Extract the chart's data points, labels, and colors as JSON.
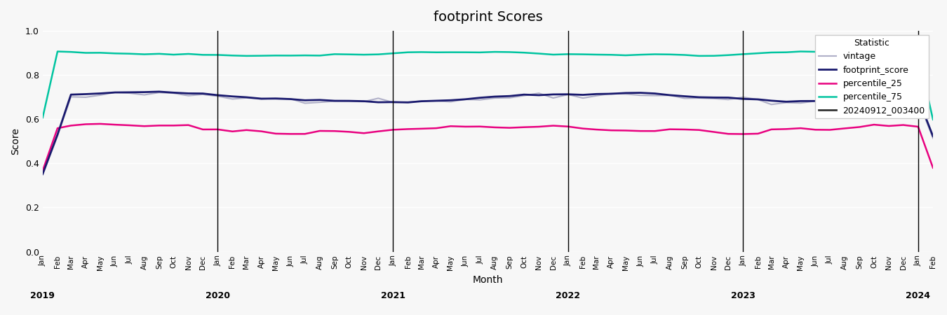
{
  "title": "footprint Scores",
  "xlabel": "Month",
  "ylabel": "Score",
  "ylim": [
    0.0,
    1.0
  ],
  "yticks": [
    0.0,
    0.2,
    0.4,
    0.6,
    0.8,
    1.0
  ],
  "legend_title": "Statistic",
  "lines": {
    "footprint_score": {
      "color": "#1a1a6e",
      "linewidth": 2.0,
      "label": "footprint_score"
    },
    "percentile_25": {
      "color": "#e8007f",
      "linewidth": 1.8,
      "label": "percentile_25"
    },
    "percentile_75": {
      "color": "#00c4a0",
      "linewidth": 1.8,
      "label": "percentile_75"
    },
    "vintage": {
      "color": "#b0b0c8",
      "linewidth": 1.5,
      "label": "vintage"
    },
    "vintage_dark": {
      "color": "#333333",
      "linewidth": 2.0,
      "label": "20240912_003400"
    }
  },
  "vline_years": [
    "2020",
    "2021",
    "2022",
    "2023",
    "2024"
  ],
  "background_color": "#f7f7f7",
  "grid_color": "#ffffff",
  "figsize": [
    13.5,
    4.5
  ],
  "dpi": 100
}
